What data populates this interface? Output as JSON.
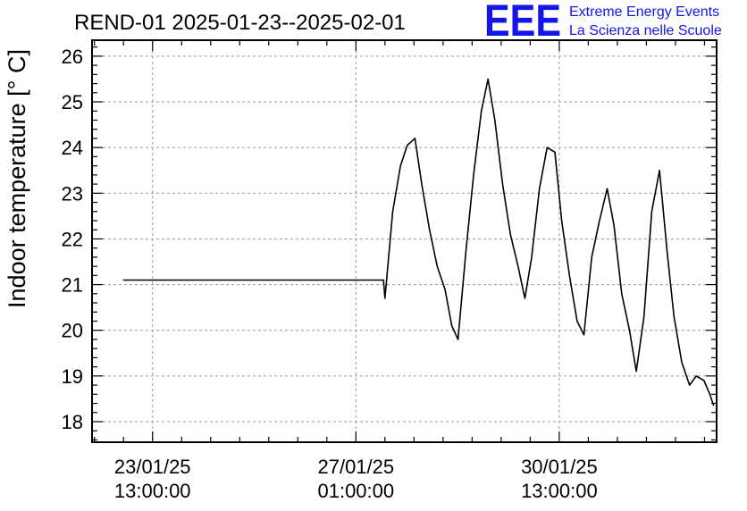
{
  "chart_data": {
    "type": "line",
    "title": "REND-01 2025-01-23--2025-02-01",
    "ylabel": "Indoor temperature [° C]",
    "xlabel": "",
    "ylim": [
      17.55,
      26.35
    ],
    "xlim": [
      "2025-01-22 12:00",
      "2025-02-02 06:00"
    ],
    "y_ticks": [
      18,
      19,
      20,
      21,
      22,
      23,
      24,
      25,
      26
    ],
    "x_ticks": [
      {
        "t": "2025-01-23 13:00",
        "label_date": "23/01/25",
        "label_time": "13:00:00"
      },
      {
        "t": "2025-01-27 01:00",
        "label_date": "27/01/25",
        "label_time": "01:00:00"
      },
      {
        "t": "2025-01-30 13:00",
        "label_date": "30/01/25",
        "label_time": "13:00:00"
      }
    ],
    "grid": true,
    "series": [
      {
        "color": "#000000",
        "points": [
          [
            "2025-01-23 00:48",
            21.1
          ],
          [
            "2025-01-27 12:24",
            21.1
          ],
          [
            "2025-01-27 13:00",
            20.7
          ],
          [
            "2025-01-27 16:12",
            22.6
          ],
          [
            "2025-01-27 19:24",
            23.6
          ],
          [
            "2025-01-27 22:12",
            24.05
          ],
          [
            "2025-01-28 01:24",
            24.2
          ],
          [
            "2025-01-28 04:12",
            23.2
          ],
          [
            "2025-01-28 07:24",
            22.2
          ],
          [
            "2025-01-28 10:36",
            21.4
          ],
          [
            "2025-01-28 13:48",
            20.9
          ],
          [
            "2025-01-28 16:36",
            20.1
          ],
          [
            "2025-01-28 19:12",
            19.8
          ],
          [
            "2025-01-28 22:24",
            21.7
          ],
          [
            "2025-01-29 01:36",
            23.4
          ],
          [
            "2025-01-29 04:48",
            24.8
          ],
          [
            "2025-01-29 07:36",
            25.5
          ],
          [
            "2025-01-29 10:24",
            24.6
          ],
          [
            "2025-01-29 13:36",
            23.2
          ],
          [
            "2025-01-29 16:48",
            22.1
          ],
          [
            "2025-01-29 20:00",
            21.4
          ],
          [
            "2025-01-29 22:48",
            20.7
          ],
          [
            "2025-01-30 01:36",
            21.6
          ],
          [
            "2025-01-30 04:48",
            23.1
          ],
          [
            "2025-01-30 08:00",
            24.0
          ],
          [
            "2025-01-30 11:12",
            23.9
          ],
          [
            "2025-01-30 14:00",
            22.4
          ],
          [
            "2025-01-30 17:12",
            21.2
          ],
          [
            "2025-01-30 20:24",
            20.2
          ],
          [
            "2025-01-30 23:12",
            19.9
          ],
          [
            "2025-01-31 02:24",
            21.6
          ],
          [
            "2025-01-31 05:36",
            22.4
          ],
          [
            "2025-01-31 08:48",
            23.1
          ],
          [
            "2025-01-31 11:36",
            22.3
          ],
          [
            "2025-01-31 14:48",
            20.8
          ],
          [
            "2025-01-31 18:00",
            20.0
          ],
          [
            "2025-01-31 20:48",
            19.1
          ],
          [
            "2025-02-01 00:00",
            20.3
          ],
          [
            "2025-02-01 03:12",
            22.6
          ],
          [
            "2025-02-01 06:24",
            23.5
          ],
          [
            "2025-02-01 09:36",
            21.7
          ],
          [
            "2025-02-01 12:24",
            20.3
          ],
          [
            "2025-02-01 15:36",
            19.3
          ],
          [
            "2025-02-01 18:48",
            18.8
          ],
          [
            "2025-02-01 21:36",
            19.0
          ],
          [
            "2025-02-02 00:48",
            18.9
          ],
          [
            "2025-02-02 03:12",
            18.6
          ],
          [
            "2025-02-02 04:48",
            18.35
          ]
        ]
      }
    ]
  },
  "logo": {
    "mark": "EEE",
    "line1": "Extreme Energy Events",
    "line2": "La Scienza nelle Scuole"
  }
}
